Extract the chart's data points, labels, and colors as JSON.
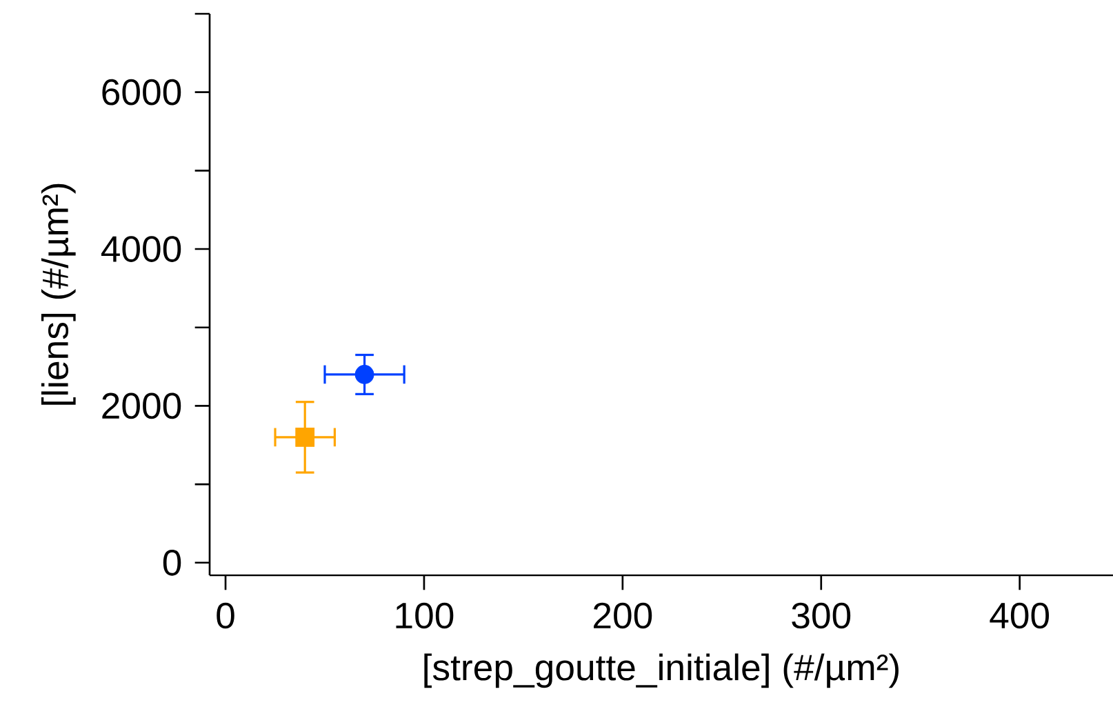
{
  "chart_data": {
    "type": "scatter",
    "xlabel": "[strep_goutte_initiale] (#/µm²)",
    "ylabel": "[liens] (#/µm²)",
    "series": [
      {
        "color": "#0040ff",
        "marker": "circle",
        "x": [
          70
        ],
        "values": [
          2400
        ],
        "xerrors": [
          20
        ],
        "errors": [
          250
        ]
      },
      {
        "color": "#ffa500",
        "marker": "square",
        "x": [
          40
        ],
        "values": [
          1600
        ],
        "xerrors": [
          15
        ],
        "errors": [
          450
        ]
      }
    ],
    "xlim": [
      -8,
      447
    ],
    "ylim": [
      -160,
      7000
    ],
    "xticks": [
      0,
      100,
      200,
      300,
      400
    ],
    "yticks": [
      0,
      {
        "value": 1000,
        "label": null
      },
      2000,
      {
        "value": 3000,
        "label": null
      },
      4000,
      {
        "value": 5000,
        "label": null
      },
      6000,
      {
        "value": 7000,
        "label": null
      }
    ],
    "grid": false
  }
}
